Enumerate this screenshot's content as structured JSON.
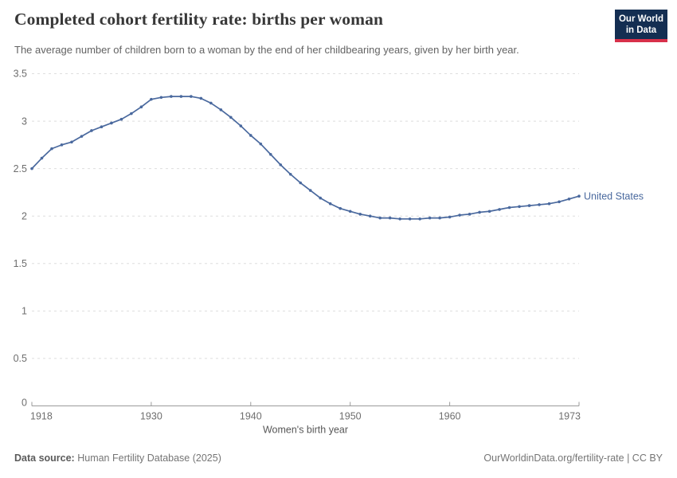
{
  "header": {
    "title": "Completed cohort fertility rate: births per woman",
    "subtitle": "The average number of children born to a woman by the end of her childbearing years, given by her birth year.",
    "logo": {
      "line1": "Our World",
      "line2": "in Data",
      "bg_color": "#142E52",
      "bar_color": "#D8304A"
    }
  },
  "chart_data": {
    "type": "line",
    "title": "Completed cohort fertility rate: births per woman",
    "series_name": "United States",
    "xlabel": "Women's birth year",
    "ylabel": "",
    "xlim": [
      1918,
      1973
    ],
    "ylim": [
      0,
      3.5
    ],
    "x_ticks": [
      1918,
      1930,
      1940,
      1950,
      1960,
      1973
    ],
    "y_ticks": [
      0,
      0.5,
      1,
      1.5,
      2,
      2.5,
      3,
      3.5
    ],
    "grid": "horizontal-dashed",
    "legend_position": "end-of-line-label",
    "line_color": "#4A699E",
    "x": [
      1918,
      1919,
      1920,
      1921,
      1922,
      1923,
      1924,
      1925,
      1926,
      1927,
      1928,
      1929,
      1930,
      1931,
      1932,
      1933,
      1934,
      1935,
      1936,
      1937,
      1938,
      1939,
      1940,
      1941,
      1942,
      1943,
      1944,
      1945,
      1946,
      1947,
      1948,
      1949,
      1950,
      1951,
      1952,
      1953,
      1954,
      1955,
      1956,
      1957,
      1958,
      1959,
      1960,
      1961,
      1962,
      1963,
      1964,
      1965,
      1966,
      1967,
      1968,
      1969,
      1970,
      1971,
      1972,
      1973
    ],
    "values": [
      2.5,
      2.61,
      2.71,
      2.75,
      2.78,
      2.84,
      2.9,
      2.94,
      2.98,
      3.02,
      3.08,
      3.15,
      3.23,
      3.25,
      3.26,
      3.26,
      3.26,
      3.24,
      3.19,
      3.12,
      3.04,
      2.95,
      2.85,
      2.76,
      2.65,
      2.54,
      2.44,
      2.35,
      2.27,
      2.19,
      2.13,
      2.08,
      2.05,
      2.02,
      2.0,
      1.98,
      1.98,
      1.97,
      1.97,
      1.97,
      1.98,
      1.98,
      1.99,
      2.01,
      2.02,
      2.04,
      2.05,
      2.07,
      2.09,
      2.1,
      2.11,
      2.12,
      2.13,
      2.15,
      2.18,
      2.21
    ]
  },
  "footer": {
    "source_label": "Data source:",
    "source_value": "Human Fertility Database (2025)",
    "attribution": "OurWorldinData.org/fertility-rate | CC BY"
  }
}
